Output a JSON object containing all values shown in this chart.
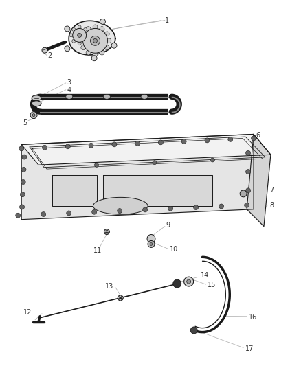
{
  "background_color": "#ffffff",
  "figure_width": 4.38,
  "figure_height": 5.33,
  "dpi": 100,
  "line_color": "#1a1a1a",
  "label_color": "#333333",
  "label_fontsize": 7.0,
  "leader_line_color": "#aaaaaa",
  "fill_light": "#f0f0f0",
  "fill_mid": "#d8d8d8",
  "fill_dark": "#c0c0c0"
}
